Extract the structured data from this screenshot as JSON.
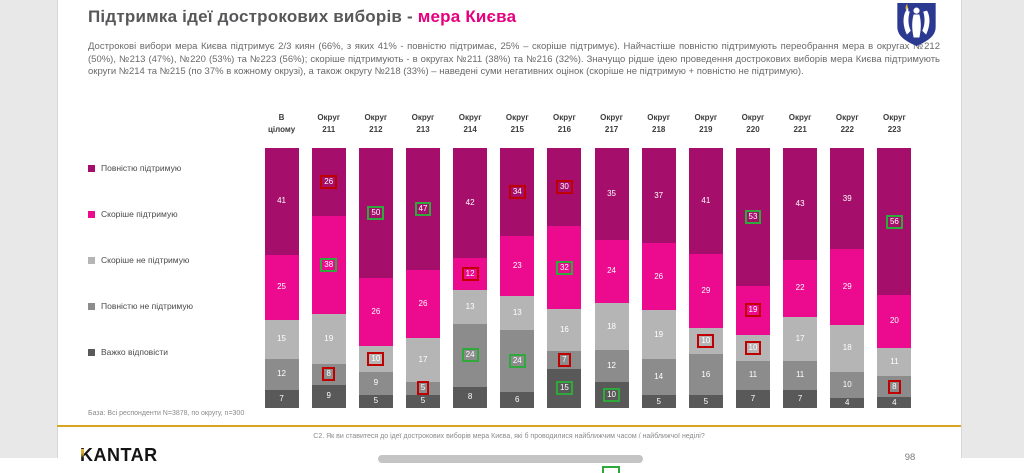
{
  "slide": {
    "title": {
      "main": "Підтримка ідеї дострокових виборів - ",
      "accent": "мера Києва"
    },
    "summary": "Дострокові вибори мера Києва підтримує 2/3 киян (66%, з яких 41% - повністю підтримає, 25% – скоріше підтримує). Найчастіше повністю підтримують переобрання мера в округах №212 (50%), №213 (47%), №220 (53%) та №223 (56%); скоріше підтримують - в округах №211 (38%) та №216 (32%). Значущо рідше ідею проведення дострокових виборів мера Києва підтримують округи №214 та №215 (по 37% в кожному окрузі), а також округу №218 (33%) – наведені суми негативних оцінок (скоріше не підтримую + повністю не підтримую).",
    "base_note": "База: Всі респонденти N=3878, по округу, n=300",
    "question": "С2. Як ви ставитеся до ідеї дострокових виборів мера Києва, які б проводилися найближчим часом / найближчої неділі?",
    "page_number": "98",
    "logo_text": "KANTAR",
    "emblem_name": "kyiv-coat-of-arms"
  },
  "colors": {
    "accent_pink": "#e6007e",
    "title_gray": "#58585a",
    "gold_line": "#d9a521",
    "significant_higher": "#2fa83c",
    "significant_lower": "#c00000",
    "emblem_blue": "#2b3990",
    "outer_margin": "#e8e8e8"
  },
  "chart_data": {
    "type": "bar",
    "stacked": true,
    "percent": true,
    "unit": "%",
    "legend_position": "left",
    "categories": [
      "В цілому",
      "Округ 211",
      "Округ 212",
      "Округ 213",
      "Округ 214",
      "Округ 215",
      "Округ 216",
      "Округ 217",
      "Округ 218",
      "Округ 219",
      "Округ 220",
      "Округ 221",
      "Округ 222",
      "Округ 223"
    ],
    "series": [
      {
        "name": "Повністю підтримую",
        "color": "#a50f6b",
        "values": [
          41,
          26,
          50,
          47,
          42,
          34,
          30,
          35,
          37,
          41,
          53,
          43,
          39,
          56
        ]
      },
      {
        "name": "Скоріше підтримую",
        "color": "#ec0a8e",
        "values": [
          25,
          38,
          26,
          26,
          12,
          23,
          32,
          24,
          26,
          29,
          19,
          22,
          29,
          20
        ]
      },
      {
        "name": "Скоріше не підтримую",
        "color": "#b5b5b5",
        "values": [
          15,
          19,
          10,
          17,
          13,
          13,
          16,
          18,
          19,
          10,
          10,
          17,
          18,
          11
        ]
      },
      {
        "name": "Повністю не підтримую",
        "color": "#8c8c8c",
        "values": [
          12,
          8,
          9,
          5,
          24,
          24,
          7,
          12,
          14,
          16,
          11,
          11,
          10,
          8
        ]
      },
      {
        "name": "Важко відповісти",
        "color": "#595959",
        "values": [
          7,
          9,
          5,
          5,
          8,
          6,
          15,
          10,
          5,
          5,
          7,
          7,
          4,
          4
        ]
      }
    ],
    "marks": [
      [
        "",
        "",
        "",
        "",
        ""
      ],
      [
        "red",
        "green",
        "",
        "red",
        ""
      ],
      [
        "green",
        "",
        "red",
        "",
        ""
      ],
      [
        "green",
        "",
        "",
        "red",
        ""
      ],
      [
        "",
        "red",
        "",
        "green",
        ""
      ],
      [
        "red",
        "",
        "",
        "green",
        ""
      ],
      [
        "red",
        "green",
        "",
        "red",
        "green"
      ],
      [
        "",
        "",
        "",
        "",
        "green"
      ],
      [
        "",
        "",
        "",
        "",
        ""
      ],
      [
        "",
        "",
        "red",
        "",
        ""
      ],
      [
        "green",
        "red",
        "red",
        "",
        ""
      ],
      [
        "",
        "",
        "",
        "",
        ""
      ],
      [
        "",
        "",
        "",
        "",
        ""
      ],
      [
        "green",
        "",
        "",
        "red",
        ""
      ]
    ],
    "marks_legend": {
      "green": "значущо вище",
      "red": "значущо нижче"
    },
    "title": "Підтримка ідеї дострокових виборів - мера Києва",
    "xlabel": "",
    "ylabel": "",
    "ylim": [
      0,
      100
    ]
  }
}
